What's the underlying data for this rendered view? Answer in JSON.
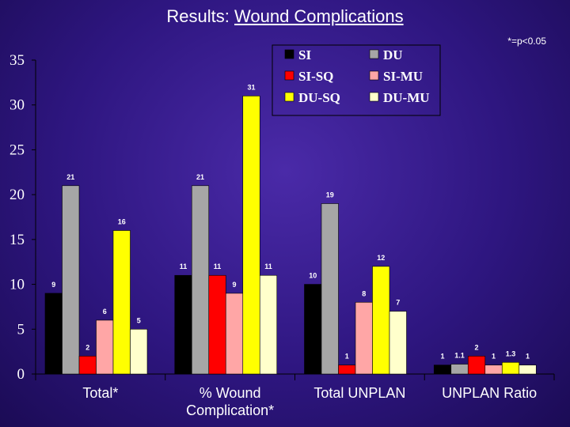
{
  "slide": {
    "title_prefix": "Results: ",
    "title_underlined": "Wound Complications",
    "note": "*=p<0.05"
  },
  "chart_data": {
    "type": "bar",
    "categories": [
      "Total*",
      "% Wound Complication*",
      "Total UNPLAN",
      "UNPLAN Ratio"
    ],
    "category_lines": [
      [
        "Total*"
      ],
      [
        "% Wound",
        "Complication*"
      ],
      [
        "Total UNPLAN"
      ],
      [
        "UNPLAN Ratio"
      ]
    ],
    "ylim": [
      0,
      35
    ],
    "yticks": [
      0,
      5,
      10,
      15,
      20,
      25,
      30,
      35
    ],
    "legend_position": "top-right",
    "grid": false,
    "series": [
      {
        "name": "SI",
        "color": "#000000",
        "values": [
          9,
          11,
          10,
          1
        ]
      },
      {
        "name": "DU",
        "color": "#a6a6a6",
        "values": [
          21,
          21,
          19,
          1.1
        ]
      },
      {
        "name": "SI-SQ",
        "color": "#ff0000",
        "values": [
          2,
          11,
          1,
          2
        ]
      },
      {
        "name": "SI-MU",
        "color": "#ffa6a6",
        "values": [
          6,
          9,
          8,
          1
        ]
      },
      {
        "name": "DU-SQ",
        "color": "#ffff00",
        "values": [
          16,
          31,
          12,
          1.3
        ]
      },
      {
        "name": "DU-MU",
        "color": "#ffffcc",
        "values": [
          5,
          11,
          7,
          1
        ]
      }
    ],
    "data_labels": [
      [
        "9",
        "11",
        "10",
        "1"
      ],
      [
        "21",
        "21",
        "19",
        "1.1"
      ],
      [
        "2",
        "11",
        "1",
        "2"
      ],
      [
        "6",
        "9",
        "8",
        "1"
      ],
      [
        "16",
        "31",
        "12",
        "1.3"
      ],
      [
        "5",
        "11",
        "7",
        "1"
      ]
    ]
  }
}
